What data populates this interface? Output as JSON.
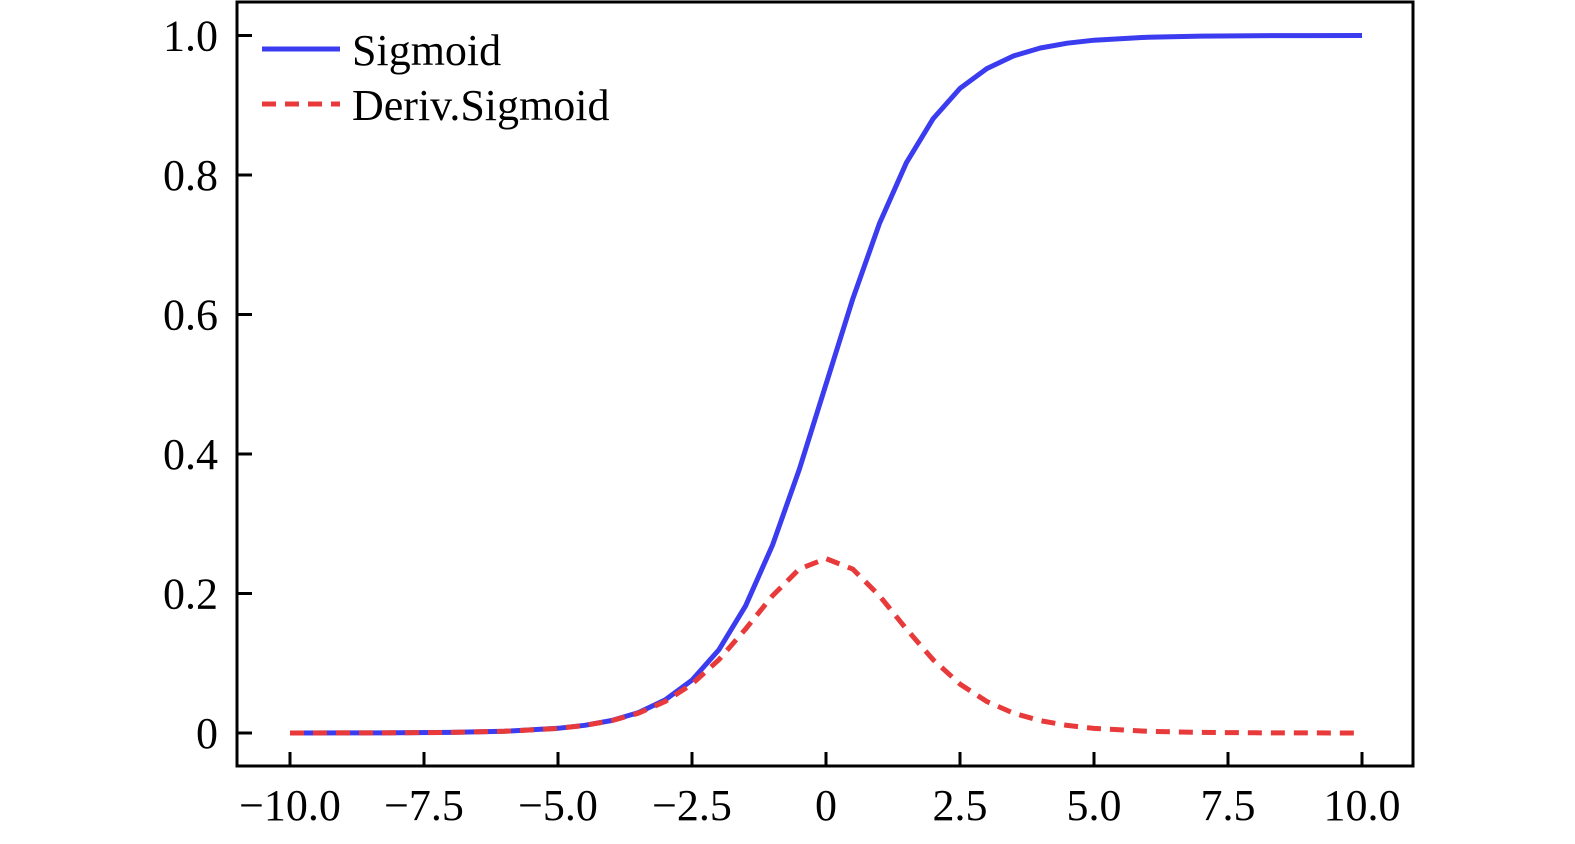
{
  "chart_data": {
    "type": "line",
    "title": "",
    "xlabel": "",
    "ylabel": "",
    "xlim": [
      -10.0,
      10.0
    ],
    "ylim": [
      0,
      1.0
    ],
    "x_ticks": [
      -10.0,
      -7.5,
      -5.0,
      -2.5,
      0,
      2.5,
      5.0,
      7.5,
      10.0
    ],
    "x_tick_labels": [
      "−10.0",
      "−7.5",
      "−5.0",
      "−2.5",
      "0",
      "2.5",
      "5.0",
      "7.5",
      "10.0"
    ],
    "y_ticks": [
      0,
      0.2,
      0.4,
      0.6,
      0.8,
      1.0
    ],
    "y_tick_labels": [
      "0",
      "0.2",
      "0.4",
      "0.6",
      "0.8",
      "1.0"
    ],
    "grid": false,
    "legend_position": "top-left",
    "x": [
      -10.0,
      -9.0,
      -8.0,
      -7.0,
      -6.0,
      -5.0,
      -4.5,
      -4.0,
      -3.5,
      -3.0,
      -2.5,
      -2.0,
      -1.5,
      -1.0,
      -0.5,
      0.0,
      0.5,
      1.0,
      1.5,
      2.0,
      2.5,
      3.0,
      3.5,
      4.0,
      4.5,
      5.0,
      6.0,
      7.0,
      8.0,
      9.0,
      10.0
    ],
    "series": [
      {
        "name": "Sigmoid",
        "style": "solid",
        "color": "#3b3bf0",
        "values": [
          5e-05,
          0.00012,
          0.00034,
          0.00091,
          0.00247,
          0.00669,
          0.01099,
          0.01799,
          0.02931,
          0.04743,
          0.07586,
          0.1192,
          0.18243,
          0.26894,
          0.37754,
          0.5,
          0.62246,
          0.73106,
          0.81757,
          0.8808,
          0.92414,
          0.95257,
          0.97069,
          0.98201,
          0.98901,
          0.99331,
          0.99753,
          0.99909,
          0.99966,
          0.99988,
          0.99995
        ]
      },
      {
        "name": "Deriv.Sigmoid",
        "style": "dashed",
        "color": "#e83a3a",
        "values": [
          5e-05,
          0.00012,
          0.00034,
          0.00091,
          0.00247,
          0.00665,
          0.01086,
          0.01766,
          0.02845,
          0.04518,
          0.07011,
          0.10499,
          0.14915,
          0.19661,
          0.235,
          0.25,
          0.235,
          0.19661,
          0.14915,
          0.10499,
          0.07011,
          0.04518,
          0.02845,
          0.01766,
          0.01086,
          0.00665,
          0.00247,
          0.00091,
          0.00034,
          0.00012,
          5e-05
        ]
      }
    ]
  }
}
